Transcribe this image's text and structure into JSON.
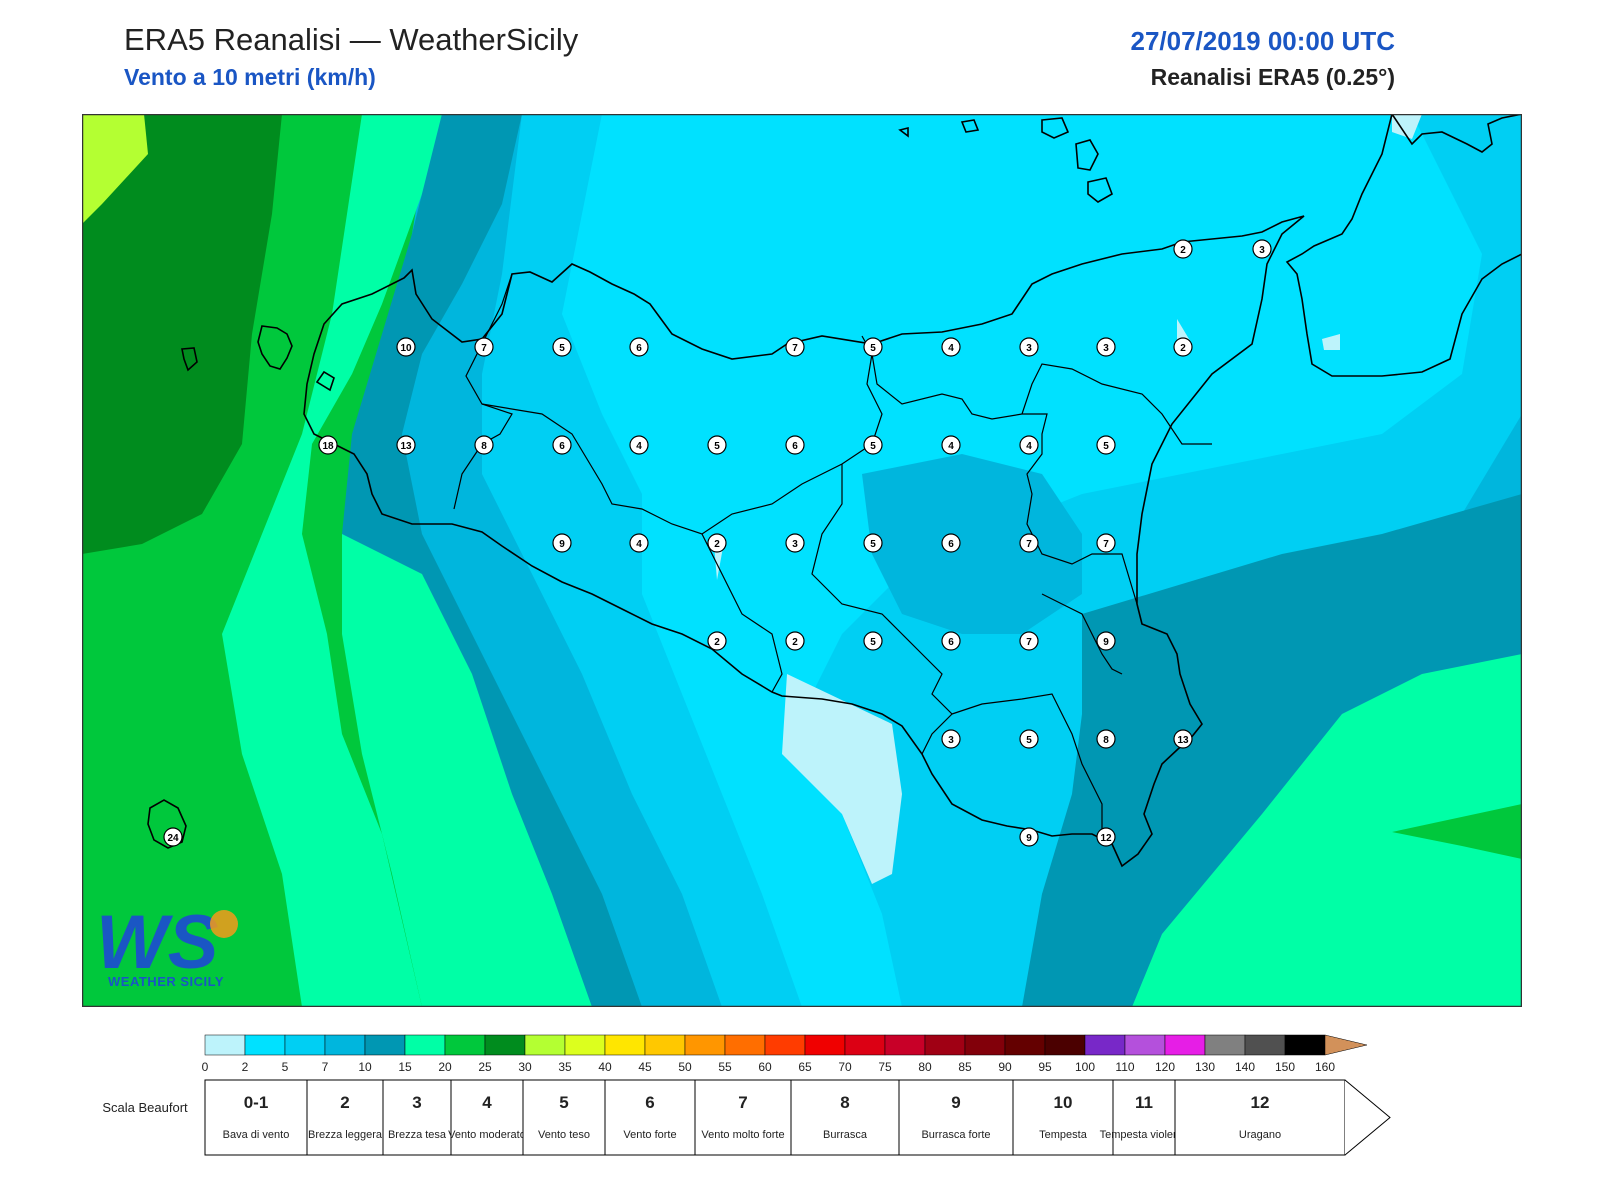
{
  "header": {
    "title": "ERA5 Reanalisi — WeatherSicily",
    "subtitle": "Vento a 10 metri (km/h)",
    "datetime": "27/07/2019 00:00 UTC",
    "model": "Reanalisi ERA5 (0.25°)"
  },
  "logo": {
    "initials": "WS",
    "text": "WEATHER SICILY"
  },
  "colors": {
    "band_0_2": "#bdf3fb",
    "band_2_5": "#00e1ff",
    "band_5_7": "#00cff3",
    "band_7_10": "#00b6dd",
    "band_10_15": "#0097b3",
    "band_15_20": "#00ffa6",
    "band_20_25": "#00c83c",
    "band_25_30": "#008c1e",
    "band_30_35": "#b4ff32",
    "coast": "#000000"
  },
  "wind_labels": [
    {
      "v": "2"
    },
    {
      "v": "3"
    },
    {
      "v": "10"
    },
    {
      "v": "7"
    },
    {
      "v": "5"
    },
    {
      "v": "6"
    },
    {
      "v": "7"
    },
    {
      "v": "5"
    },
    {
      "v": "4"
    },
    {
      "v": "3"
    },
    {
      "v": "3"
    },
    {
      "v": "2"
    },
    {
      "v": "18"
    },
    {
      "v": "13"
    },
    {
      "v": "8"
    },
    {
      "v": "6"
    },
    {
      "v": "4"
    },
    {
      "v": "5"
    },
    {
      "v": "6"
    },
    {
      "v": "5"
    },
    {
      "v": "4"
    },
    {
      "v": "4"
    },
    {
      "v": "5"
    },
    {
      "v": "9"
    },
    {
      "v": "4"
    },
    {
      "v": "2"
    },
    {
      "v": "3"
    },
    {
      "v": "5"
    },
    {
      "v": "6"
    },
    {
      "v": "7"
    },
    {
      "v": "7"
    },
    {
      "v": "2"
    },
    {
      "v": "2"
    },
    {
      "v": "5"
    },
    {
      "v": "6"
    },
    {
      "v": "7"
    },
    {
      "v": "9"
    },
    {
      "v": "3"
    },
    {
      "v": "5"
    },
    {
      "v": "8"
    },
    {
      "v": "13"
    },
    {
      "v": "9"
    },
    {
      "v": "12"
    },
    {
      "v": "24"
    }
  ],
  "colorbar": {
    "ticks": [
      "0",
      "2",
      "5",
      "7",
      "10",
      "15",
      "20",
      "25",
      "30",
      "35",
      "40",
      "45",
      "50",
      "55",
      "60",
      "65",
      "70",
      "75",
      "80",
      "85",
      "90",
      "95",
      "100",
      "110",
      "120",
      "130",
      "140",
      "150",
      "160"
    ],
    "colors": [
      "#bdf3fb",
      "#00e1ff",
      "#00cff3",
      "#00b6dd",
      "#0097b3",
      "#00ffa6",
      "#00c83c",
      "#008c1e",
      "#b4ff32",
      "#dcff1e",
      "#ffe600",
      "#ffc800",
      "#ff9600",
      "#ff6e00",
      "#ff3c00",
      "#f00000",
      "#dc0014",
      "#c80028",
      "#a00014",
      "#82000a",
      "#640000",
      "#4b0000",
      "#7828c8",
      "#b450dc",
      "#e61ee6",
      "#808080",
      "#505050",
      "#000000",
      "#7a3c1e",
      "#b46432",
      "#d2915a"
    ]
  },
  "beaufort": {
    "label": "Scala Beaufort",
    "cells": [
      {
        "n": "0-1",
        "d": "Bava di vento"
      },
      {
        "n": "2",
        "d": "Brezza leggera"
      },
      {
        "n": "3",
        "d": "Brezza tesa"
      },
      {
        "n": "4",
        "d": "Vento moderato"
      },
      {
        "n": "5",
        "d": "Vento teso"
      },
      {
        "n": "6",
        "d": "Vento forte"
      },
      {
        "n": "7",
        "d": "Vento molto forte"
      },
      {
        "n": "8",
        "d": "Burrasca"
      },
      {
        "n": "9",
        "d": "Burrasca forte"
      },
      {
        "n": "10",
        "d": "Tempesta"
      },
      {
        "n": "11",
        "d": "Tempesta violenta"
      },
      {
        "n": "12",
        "d": "Uragano"
      }
    ]
  }
}
